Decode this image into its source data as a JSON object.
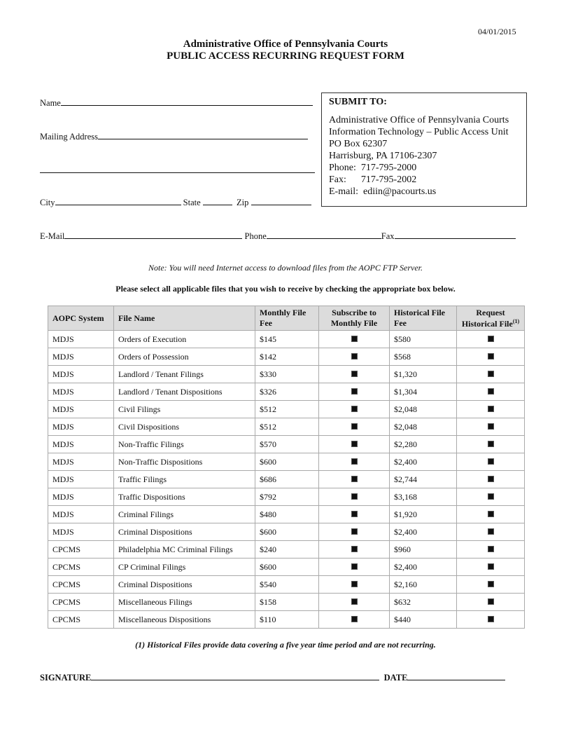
{
  "date": "04/01/2015",
  "title1": "Administrative Office of Pennsylvania Courts",
  "title2": "PUBLIC ACCESS RECURRING REQUEST FORM",
  "fields": {
    "name": "Name",
    "mailing": "Mailing Address",
    "city": "City",
    "state": "State",
    "zip": "Zip",
    "email": "E-Mail",
    "phone": "Phone",
    "fax": "Fax"
  },
  "submit": {
    "heading": "SUBMIT TO:",
    "lines": [
      "Administrative Office of Pennsylvania Courts",
      "Information Technology – Public Access Unit",
      "PO Box 62307",
      "Harrisburg, PA  17106-2307",
      "Phone:  717-795-2000",
      "Fax:      717-795-2002",
      "E-mail:  ediin@pacourts.us"
    ]
  },
  "note": "Note:  You will need Internet access to download files from the AOPC FTP Server.",
  "instruction": "Please select all applicable files that you wish to receive by checking the appropriate box below.",
  "table": {
    "headers": [
      "AOPC System",
      "File Name",
      "Monthly File Fee",
      "Subscribe to Monthly File",
      "Historical File Fee",
      "Request Historical File"
    ],
    "footnote_mark": "(1)",
    "rows": [
      [
        "MDJS",
        "Orders of Execution",
        "$145",
        "$580"
      ],
      [
        "MDJS",
        "Orders of Possession",
        "$142",
        "$568"
      ],
      [
        "MDJS",
        "Landlord / Tenant Filings",
        "$330",
        "$1,320"
      ],
      [
        "MDJS",
        "Landlord / Tenant Dispositions",
        "$326",
        "$1,304"
      ],
      [
        "MDJS",
        "Civil Filings",
        "$512",
        "$2,048"
      ],
      [
        "MDJS",
        "Civil Dispositions",
        "$512",
        "$2,048"
      ],
      [
        "MDJS",
        "Non-Traffic Filings",
        "$570",
        "$2,280"
      ],
      [
        "MDJS",
        "Non-Traffic Dispositions",
        "$600",
        "$2,400"
      ],
      [
        "MDJS",
        "Traffic Filings",
        "$686",
        "$2,744"
      ],
      [
        "MDJS",
        "Traffic Dispositions",
        "$792",
        "$3,168"
      ],
      [
        "MDJS",
        "Criminal Filings",
        "$480",
        "$1,920"
      ],
      [
        "MDJS",
        "Criminal Dispositions",
        "$600",
        "$2,400"
      ],
      [
        "CPCMS",
        "Philadelphia MC Criminal Filings",
        "$240",
        "$960"
      ],
      [
        "CPCMS",
        "CP Criminal Filings",
        "$600",
        "$2,400"
      ],
      [
        "CPCMS",
        "Criminal Dispositions",
        "$540",
        "$2,160"
      ],
      [
        "CPCMS",
        "Miscellaneous Filings",
        "$158",
        "$632"
      ],
      [
        "CPCMS",
        "Miscellaneous Dispositions",
        "$110",
        "$440"
      ]
    ]
  },
  "footnote": "(1)  Historical Files provide data covering a five year time period and are not recurring.",
  "signature": "SIGNATURE",
  "sig_date": "DATE"
}
